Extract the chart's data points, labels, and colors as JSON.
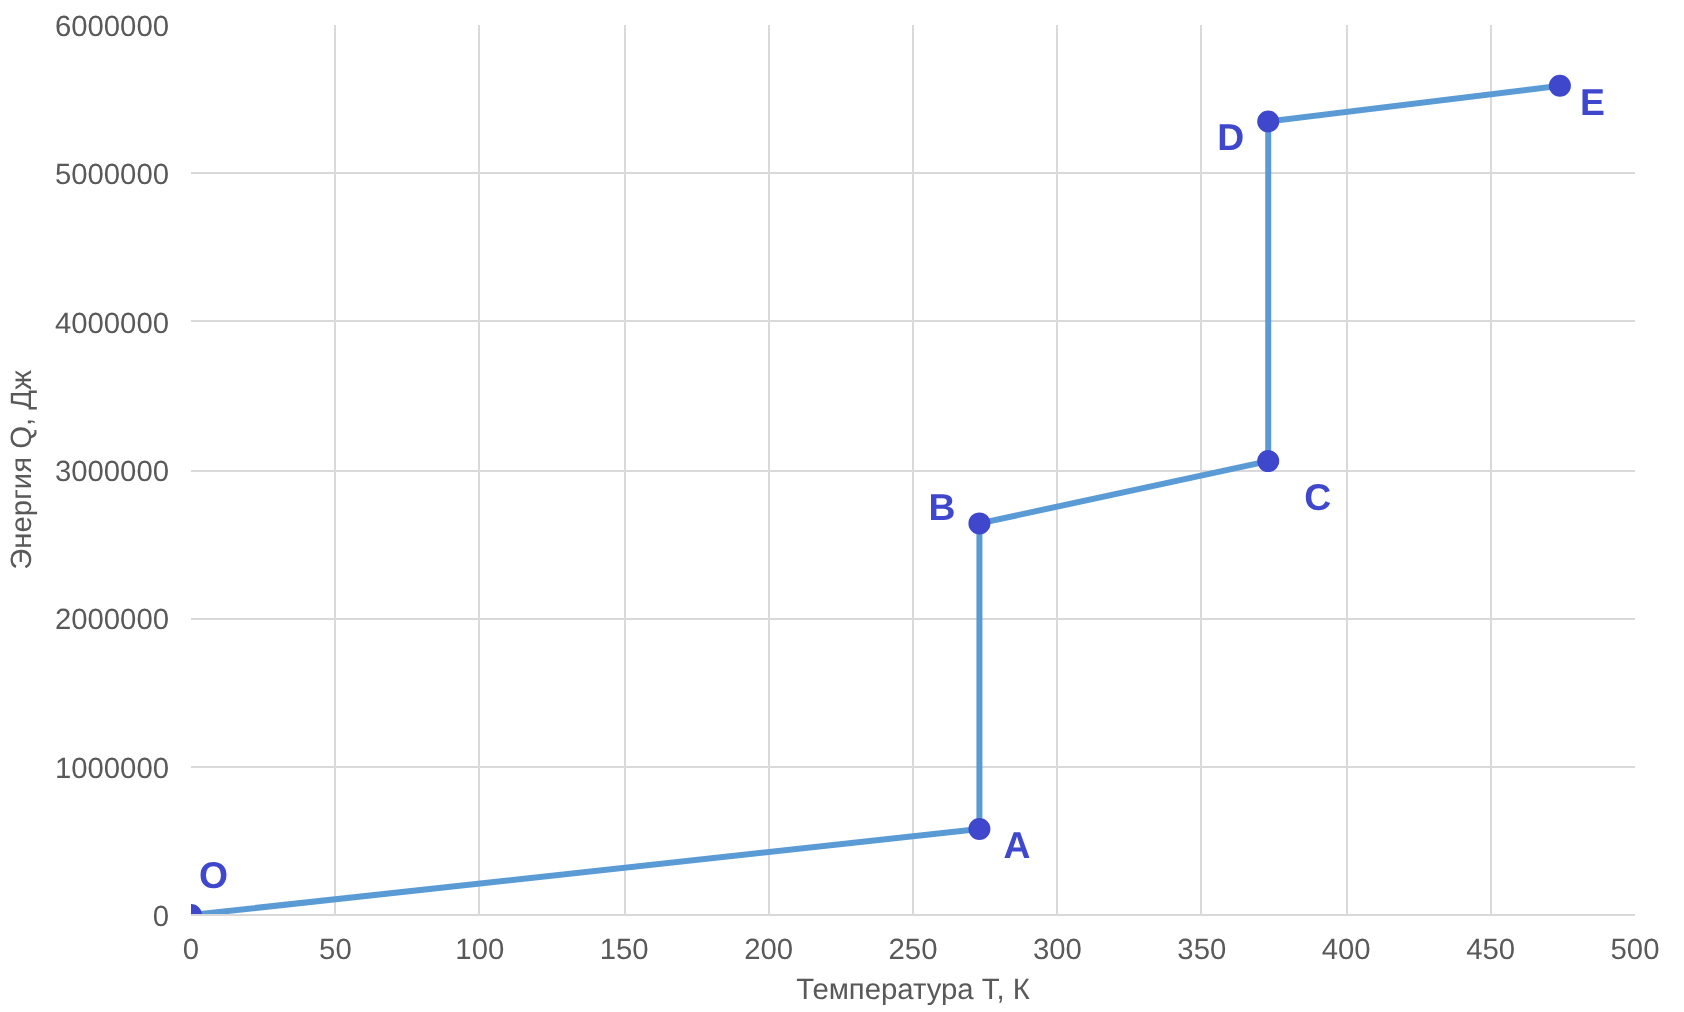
{
  "chart_data": {
    "type": "line",
    "xlabel": "Температура T, К",
    "ylabel": "Энергия Q, Дж",
    "x": [
      0,
      273,
      273,
      373,
      373,
      474
    ],
    "series": [
      {
        "color": "#5b9bd5",
        "values": [
          0,
          580000,
          2640000,
          3060000,
          5350000,
          5590000
        ]
      }
    ],
    "marker": "circle",
    "line_style": "solid",
    "grid": true,
    "xlim": [
      0,
      500
    ],
    "xticks": [
      0,
      50,
      100,
      150,
      200,
      250,
      300,
      350,
      400,
      450,
      500
    ],
    "ylim": [
      0,
      6000000
    ],
    "yticks": [
      0,
      1000000,
      2000000,
      3000000,
      4000000,
      5000000,
      6000000
    ],
    "annotations": [
      {
        "text": "O",
        "x": 0,
        "y": 0
      },
      {
        "text": "A",
        "x": 273,
        "y": 580000
      },
      {
        "text": "B",
        "x": 273,
        "y": 2640000
      },
      {
        "text": "C",
        "x": 373,
        "y": 3060000
      },
      {
        "text": "D",
        "x": 373,
        "y": 5350000
      },
      {
        "text": "E",
        "x": 474,
        "y": 5590000
      }
    ]
  }
}
